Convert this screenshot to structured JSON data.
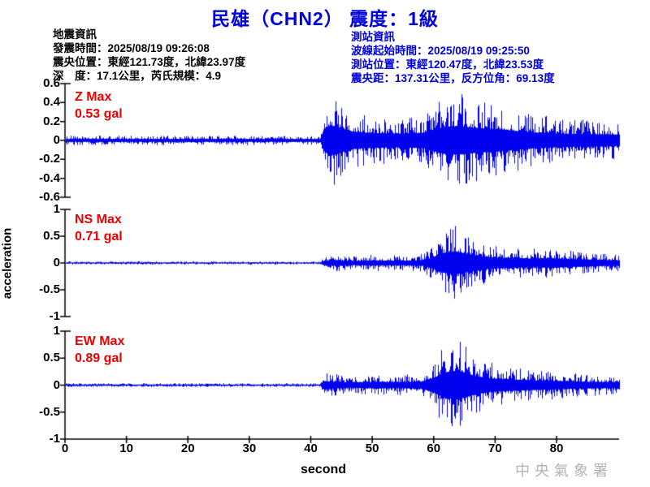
{
  "title": "民雄（CHN2） 震度：1級",
  "event_info": {
    "heading": "地震資訊",
    "lines": [
      "發震時間：2025/08/19 09:26:08",
      "震央位置：東經121.73度，北緯23.97度",
      "深　度：17.1公里，芮氏規模：4.9"
    ]
  },
  "station_info": {
    "heading": "測站資訊",
    "lines": [
      "波線起始時間：2025/08/19 09:25:50",
      "測站位置：東經120.47度，北緯23.53度",
      "震央距：137.31公里，反方位角：69.13度"
    ]
  },
  "axes": {
    "xlabel": "second",
    "ylabel": "acceleration"
  },
  "watermark": "中央氣象署",
  "colors": {
    "title": "#0000dd",
    "event_info_text": "#000000",
    "station_info_text": "#0000dd",
    "waveform": "#0000ee",
    "max_label": "#ee0000",
    "axis": "#000000",
    "watermark": "#b3b3b3"
  },
  "chart_data": {
    "type": "line",
    "title": "民雄（CHN2） 震度：1級",
    "xlabel": "second",
    "ylabel": "acceleration",
    "x_range_seconds": [
      0,
      90
    ],
    "x_ticks": [
      0,
      10,
      20,
      30,
      40,
      50,
      60,
      70,
      80
    ],
    "grid": false,
    "panels": [
      {
        "component": "Z",
        "max_label": "Z Max",
        "max_value_label": "0.53 gal",
        "max_gal": 0.53,
        "ylim": [
          -0.6,
          0.6
        ],
        "yticks": [
          0.6,
          0.4,
          0.2,
          0,
          -0.2,
          -0.4,
          -0.6
        ],
        "noise_level_gal": 0.05,
        "p_arrival_s": 42,
        "s_arrival_s": 60,
        "envelope_gal": [
          [
            0,
            0.05
          ],
          [
            41.5,
            0.05
          ],
          [
            42,
            0.35
          ],
          [
            43,
            0.53
          ],
          [
            44.5,
            0.45
          ],
          [
            47,
            0.3
          ],
          [
            50,
            0.26
          ],
          [
            54,
            0.24
          ],
          [
            58,
            0.26
          ],
          [
            60,
            0.38
          ],
          [
            62,
            0.48
          ],
          [
            64,
            0.5
          ],
          [
            66,
            0.45
          ],
          [
            68,
            0.42
          ],
          [
            70,
            0.4
          ],
          [
            73,
            0.34
          ],
          [
            76,
            0.28
          ],
          [
            80,
            0.24
          ],
          [
            84,
            0.22
          ],
          [
            90,
            0.2
          ]
        ]
      },
      {
        "component": "NS",
        "max_label": "NS Max",
        "max_value_label": "0.71 gal",
        "max_gal": 0.71,
        "ylim": [
          -1,
          1
        ],
        "yticks": [
          1,
          0.5,
          0,
          -0.5,
          -1
        ],
        "noise_level_gal": 0.03,
        "p_arrival_s": 42,
        "s_arrival_s": 60,
        "envelope_gal": [
          [
            0,
            0.03
          ],
          [
            41.5,
            0.03
          ],
          [
            42,
            0.13
          ],
          [
            44,
            0.16
          ],
          [
            47,
            0.13
          ],
          [
            50,
            0.16
          ],
          [
            53,
            0.14
          ],
          [
            56,
            0.15
          ],
          [
            58,
            0.17
          ],
          [
            59.5,
            0.3
          ],
          [
            61,
            0.55
          ],
          [
            62.5,
            0.68
          ],
          [
            63.5,
            0.71
          ],
          [
            65,
            0.6
          ],
          [
            66.5,
            0.5
          ],
          [
            68,
            0.4
          ],
          [
            70,
            0.33
          ],
          [
            73,
            0.3
          ],
          [
            76,
            0.27
          ],
          [
            79,
            0.3
          ],
          [
            82,
            0.25
          ],
          [
            85,
            0.22
          ],
          [
            88,
            0.18
          ],
          [
            90,
            0.16
          ]
        ]
      },
      {
        "component": "EW",
        "max_label": "EW Max",
        "max_value_label": "0.89 gal",
        "max_gal": 0.89,
        "ylim": [
          -1,
          1
        ],
        "yticks": [
          1,
          0.5,
          0,
          -0.5,
          -1
        ],
        "noise_level_gal": 0.035,
        "p_arrival_s": 42,
        "s_arrival_s": 60,
        "envelope_gal": [
          [
            0,
            0.035
          ],
          [
            41.5,
            0.035
          ],
          [
            42,
            0.25
          ],
          [
            43.5,
            0.22
          ],
          [
            46,
            0.16
          ],
          [
            48,
            0.18
          ],
          [
            51,
            0.2
          ],
          [
            54,
            0.18
          ],
          [
            56,
            0.2
          ],
          [
            58,
            0.22
          ],
          [
            60,
            0.45
          ],
          [
            61.5,
            0.75
          ],
          [
            63,
            0.85
          ],
          [
            64,
            0.89
          ],
          [
            65.5,
            0.7
          ],
          [
            67,
            0.55
          ],
          [
            69,
            0.42
          ],
          [
            71,
            0.38
          ],
          [
            74,
            0.32
          ],
          [
            77,
            0.28
          ],
          [
            80,
            0.26
          ],
          [
            83,
            0.22
          ],
          [
            86,
            0.2
          ],
          [
            90,
            0.18
          ]
        ]
      }
    ]
  }
}
